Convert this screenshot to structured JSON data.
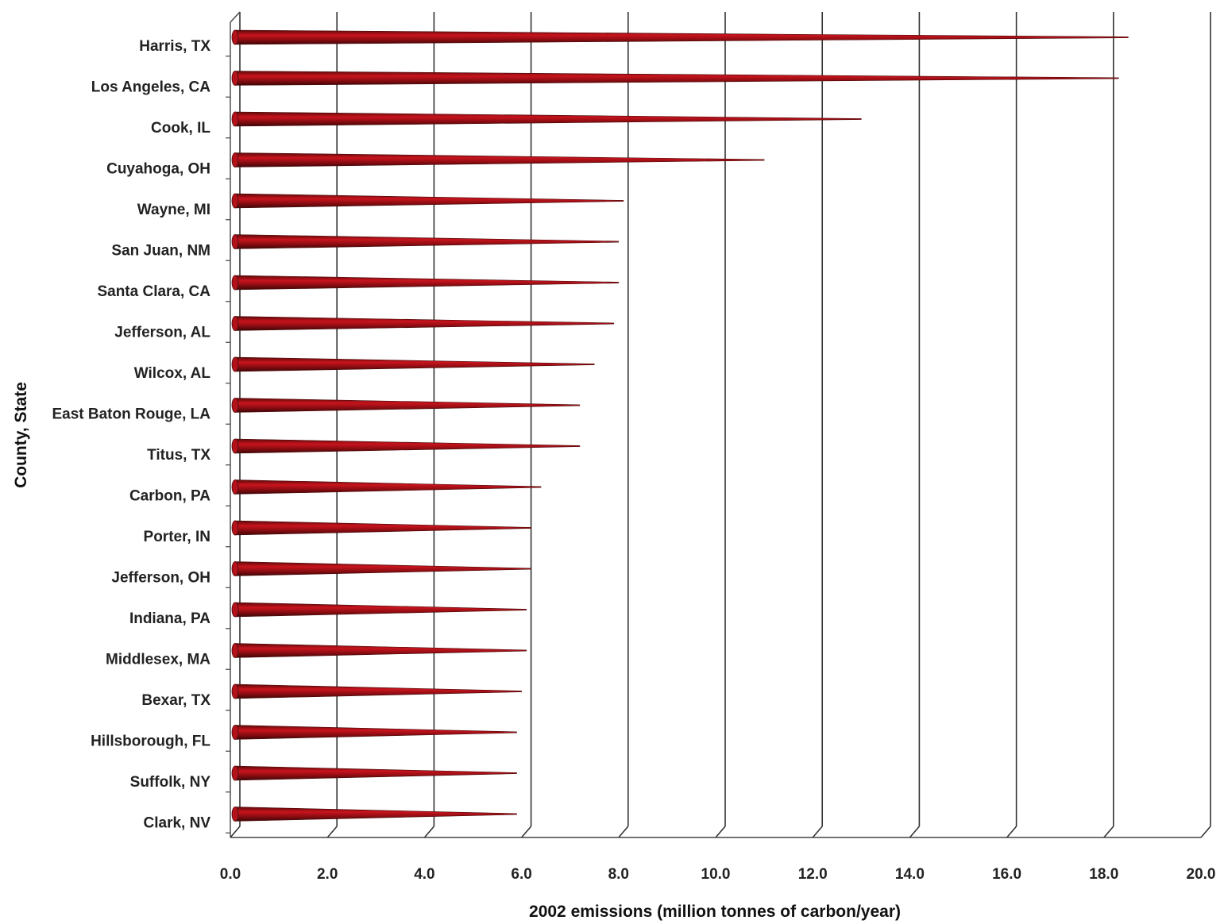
{
  "chart_data": {
    "type": "bar",
    "orientation": "horizontal",
    "bar_shape": "cone",
    "ylabel": "County, State",
    "xlabel": "2002 emissions (million tonnes of carbon/year)",
    "xlim": [
      0,
      20
    ],
    "x_ticks": [
      "0.0",
      "2.0",
      "4.0",
      "6.0",
      "8.0",
      "10.0",
      "12.0",
      "14.0",
      "16.0",
      "18.0",
      "20.0"
    ],
    "grid": "vertical",
    "categories": [
      "Harris, TX",
      "Los Angeles, CA",
      "Cook, IL",
      "Cuyahoga, OH",
      "Wayne, MI",
      "San Juan, NM",
      "Santa Clara, CA",
      "Jefferson, AL",
      "Wilcox, AL",
      "East Baton Rouge, LA",
      "Titus, TX",
      "Carbon, PA",
      "Porter, IN",
      "Jefferson, OH",
      "Indiana, PA",
      "Middlesex, MA",
      "Bexar, TX",
      "Hillsborough, FL",
      "Suffolk, NY",
      "Clark, NV"
    ],
    "values": [
      18.5,
      18.3,
      13.0,
      11.0,
      8.1,
      8.0,
      8.0,
      7.9,
      7.5,
      7.2,
      7.2,
      6.4,
      6.2,
      6.2,
      6.1,
      6.1,
      6.0,
      5.9,
      5.9,
      5.9
    ],
    "bar_color": "#b3121b",
    "bar_dark": "#4a0a0a",
    "grid_color": "#333333"
  }
}
